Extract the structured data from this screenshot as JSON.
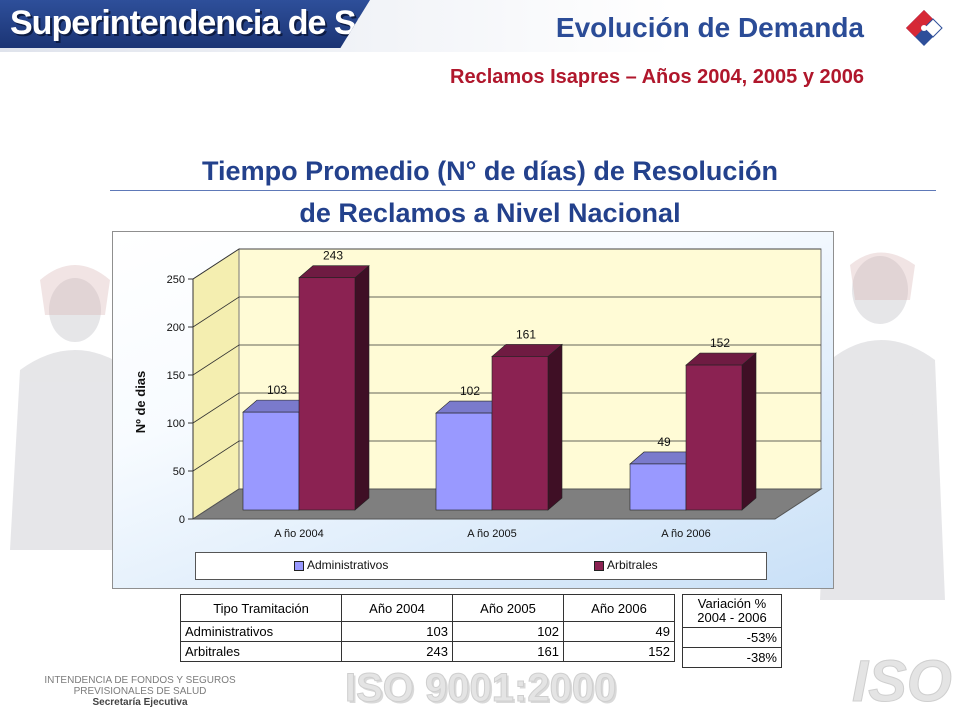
{
  "header": {
    "logo_text": "Superintendencia de Salud",
    "title": "Evolución de Demanda",
    "subtitle": "Reclamos Isapres – Años 2004, 2005 y 2006"
  },
  "chart_title_line1": "Tiempo Promedio (N° de días) de Resolución",
  "chart_title_line2": "de Reclamos a Nivel Nacional",
  "chart_data": {
    "type": "bar",
    "title": "",
    "xlabel": "",
    "ylabel": "Nº de dias",
    "categories": [
      "A ño 2004",
      "A ño 2005",
      "A ño 2006"
    ],
    "series": [
      {
        "name": "Administrativos",
        "values": [
          103,
          102,
          49
        ],
        "color": "#9999ff"
      },
      {
        "name": "Arbitrales",
        "values": [
          243,
          161,
          152
        ],
        "color": "#8b2252"
      }
    ],
    "yticks": [
      "0",
      "50",
      "100",
      "150",
      "200",
      "250"
    ],
    "ylim": [
      0,
      250
    ],
    "grid": true,
    "legend_position": "bottom"
  },
  "table": {
    "headers": [
      "Tipo Tramitación",
      "Año 2004",
      "Año 2005",
      "Año 2006"
    ],
    "rows": [
      {
        "label": "Administrativos",
        "values": [
          "103",
          "102",
          "49"
        ]
      },
      {
        "label": "Arbitrales",
        "values": [
          "243",
          "161",
          "152"
        ]
      }
    ]
  },
  "variation": {
    "header_line1": "Variación %",
    "header_line2": "2004 - 2006",
    "values": [
      "-53%",
      "-38%"
    ]
  },
  "footer": {
    "line1": "INTENDENCIA DE FONDOS Y SEGUROS",
    "line2": "PREVISIONALES DE SALUD",
    "line3": "Secretaría Ejecutiva",
    "iso_text": "ISO 9001:2000",
    "iso_logo": "ISO"
  }
}
